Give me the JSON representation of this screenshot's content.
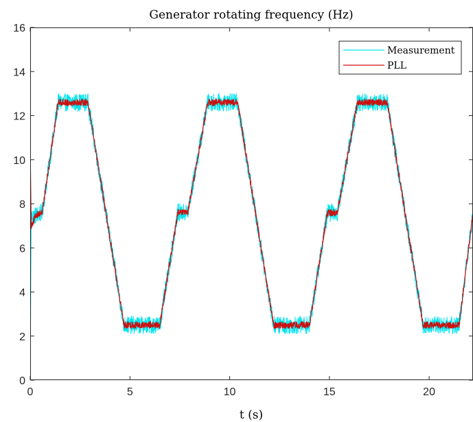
{
  "chart_data": {
    "type": "line",
    "title": "Generator rotating frequency (Hz)",
    "xlabel": "t (s)",
    "ylabel": "",
    "xlim": [
      0,
      22.2
    ],
    "ylim": [
      0,
      16
    ],
    "xticks": [
      0,
      5,
      10,
      15,
      20
    ],
    "yticks": [
      0,
      2,
      4,
      6,
      8,
      10,
      12,
      14,
      16
    ],
    "grid": false,
    "legend_position": "top-right",
    "series": [
      {
        "name": "Measurement",
        "color": "#00e5ee",
        "profile": [
          [
            0.0,
            0.0
          ],
          [
            0.05,
            7.4
          ],
          [
            0.6,
            7.6
          ],
          [
            1.4,
            12.6
          ],
          [
            2.9,
            12.6
          ],
          [
            4.7,
            2.5
          ],
          [
            6.5,
            2.5
          ],
          [
            7.4,
            7.6
          ],
          [
            7.9,
            7.6
          ],
          [
            8.9,
            12.6
          ],
          [
            10.4,
            12.6
          ],
          [
            12.2,
            2.5
          ],
          [
            14.0,
            2.5
          ],
          [
            14.9,
            7.6
          ],
          [
            15.4,
            7.6
          ],
          [
            16.4,
            12.6
          ],
          [
            17.9,
            12.6
          ],
          [
            19.7,
            2.5
          ],
          [
            21.5,
            2.5
          ],
          [
            22.2,
            7.6
          ]
        ],
        "noise_amplitude": 0.4
      },
      {
        "name": "PLL",
        "color": "#cc1111",
        "profile": [
          [
            0.0,
            10.6
          ],
          [
            0.05,
            7.0
          ],
          [
            0.3,
            7.5
          ],
          [
            0.6,
            7.6
          ],
          [
            1.4,
            12.6
          ],
          [
            2.9,
            12.6
          ],
          [
            4.7,
            2.5
          ],
          [
            6.5,
            2.5
          ],
          [
            7.4,
            7.6
          ],
          [
            7.9,
            7.6
          ],
          [
            8.9,
            12.6
          ],
          [
            10.4,
            12.6
          ],
          [
            12.2,
            2.5
          ],
          [
            14.0,
            2.5
          ],
          [
            14.9,
            7.6
          ],
          [
            15.4,
            7.6
          ],
          [
            16.4,
            12.6
          ],
          [
            17.9,
            12.6
          ],
          [
            19.7,
            2.5
          ],
          [
            21.5,
            2.5
          ],
          [
            22.2,
            7.6
          ]
        ],
        "noise_amplitude": 0.15
      }
    ]
  }
}
